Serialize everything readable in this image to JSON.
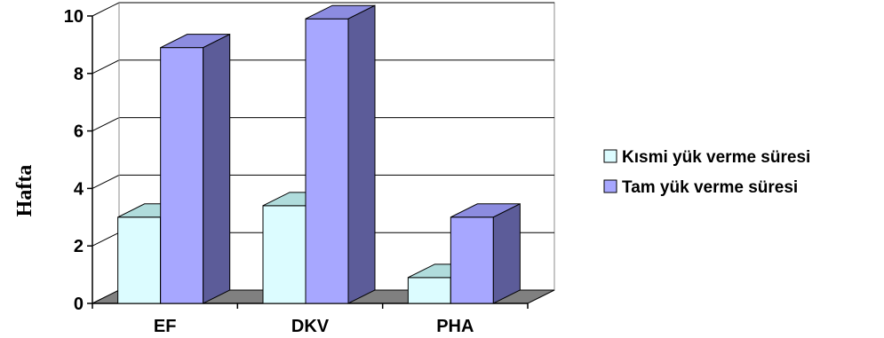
{
  "chart_data": {
    "type": "bar",
    "categories": [
      "EF",
      "DKV",
      "PHA"
    ],
    "series": [
      {
        "name": "Kısmi yük verme süresi",
        "values": [
          3,
          3.4,
          0.9
        ],
        "color": "#dcfcff",
        "side_color": "#7fb5b5"
      },
      {
        "name": "Tam yük verme süresi",
        "values": [
          8.9,
          9.9,
          3
        ],
        "color": "#a7a7ff",
        "side_color": "#5c5c99"
      }
    ],
    "ylabel": "Hafta",
    "ylim": [
      0,
      10
    ],
    "yticks": [
      0,
      2,
      4,
      6,
      8,
      10
    ],
    "grid": true,
    "legend": "right",
    "three_d": true
  }
}
